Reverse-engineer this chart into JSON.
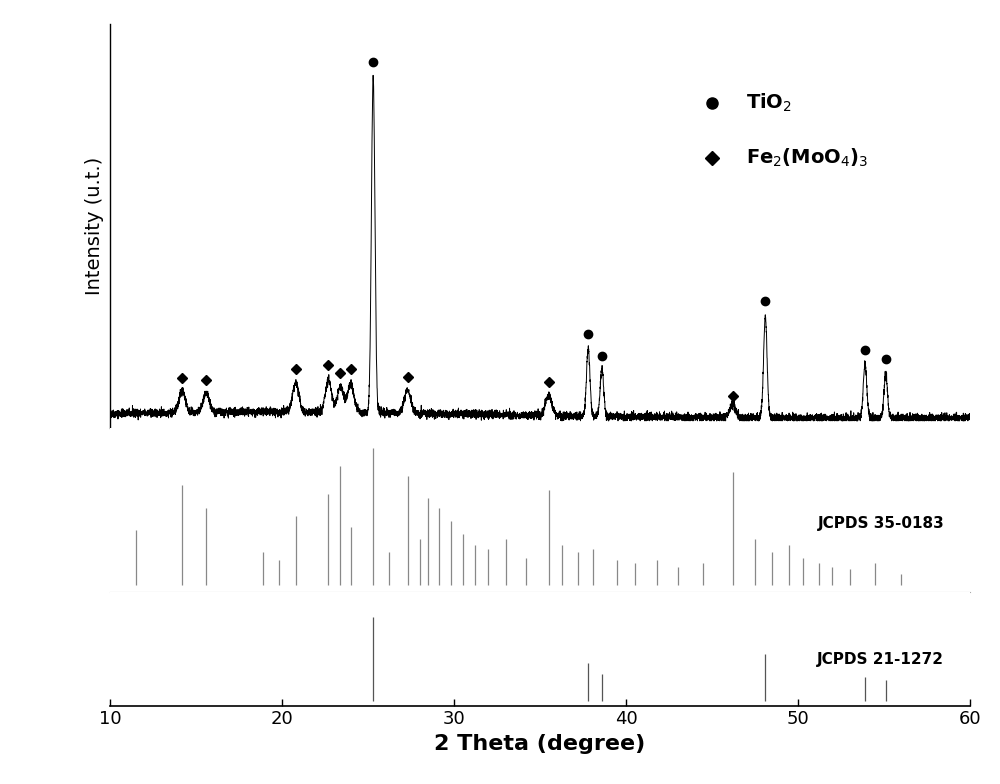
{
  "xlim": [
    10,
    60
  ],
  "xlabel": "2 Theta (degree)",
  "ylabel": "Intensity (u.t.)",
  "xlabel_fontsize": 16,
  "ylabel_fontsize": 14,
  "tick_fontsize": 13,
  "background_color": "#ffffff",
  "tio2_peaks": [
    25.3,
    37.8,
    38.6,
    48.1,
    53.9,
    55.1
  ],
  "tio2_peak_heights": [
    1.0,
    0.2,
    0.14,
    0.3,
    0.16,
    0.13
  ],
  "femoo4_peaks": [
    14.2,
    15.6,
    20.8,
    22.7,
    23.4,
    24.0,
    27.3,
    35.5,
    46.2
  ],
  "femoo4_peak_heights": [
    0.065,
    0.055,
    0.085,
    0.095,
    0.075,
    0.085,
    0.07,
    0.06,
    0.038
  ],
  "jcpds_35_0183_peaks": [
    11.5,
    14.2,
    15.6,
    18.9,
    19.8,
    20.8,
    22.7,
    23.4,
    24.0,
    25.3,
    26.2,
    27.3,
    28.0,
    28.5,
    29.1,
    29.8,
    30.5,
    31.2,
    32.0,
    33.0,
    34.2,
    35.5,
    36.3,
    37.2,
    38.1,
    39.5,
    40.5,
    41.8,
    43.0,
    44.5,
    46.2,
    47.5,
    48.5,
    49.5,
    50.3,
    51.2,
    52.0,
    53.0,
    54.5,
    56.0
  ],
  "jcpds_35_0183_heights": [
    0.3,
    0.55,
    0.42,
    0.18,
    0.14,
    0.38,
    0.5,
    0.65,
    0.32,
    0.75,
    0.18,
    0.6,
    0.25,
    0.48,
    0.42,
    0.35,
    0.28,
    0.22,
    0.2,
    0.25,
    0.15,
    0.52,
    0.22,
    0.18,
    0.2,
    0.14,
    0.12,
    0.14,
    0.1,
    0.12,
    0.62,
    0.25,
    0.18,
    0.22,
    0.15,
    0.12,
    0.1,
    0.09,
    0.12,
    0.06
  ],
  "jcpds_21_1272_peaks": [
    25.3,
    37.8,
    38.6,
    48.1,
    53.9,
    55.1
  ],
  "jcpds_21_1272_heights": [
    1.0,
    0.45,
    0.32,
    0.55,
    0.28,
    0.24
  ],
  "noise_seed": 42,
  "line_color": "#000000",
  "ref_color_35": "#888888",
  "ref_color_21": "#555555"
}
